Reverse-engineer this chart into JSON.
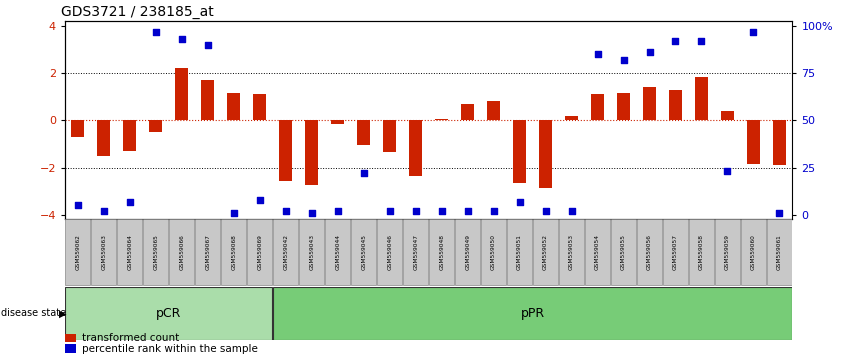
{
  "title": "GDS3721 / 238185_at",
  "samples": [
    "GSM559062",
    "GSM559063",
    "GSM559064",
    "GSM559065",
    "GSM559066",
    "GSM559067",
    "GSM559068",
    "GSM559069",
    "GSM559042",
    "GSM559043",
    "GSM559044",
    "GSM559045",
    "GSM559046",
    "GSM559047",
    "GSM559048",
    "GSM559049",
    "GSM559050",
    "GSM559051",
    "GSM559052",
    "GSM559053",
    "GSM559054",
    "GSM559055",
    "GSM559056",
    "GSM559057",
    "GSM559058",
    "GSM559059",
    "GSM559060",
    "GSM559061"
  ],
  "bar_values": [
    -0.7,
    -1.5,
    -1.3,
    -0.5,
    2.2,
    1.7,
    1.15,
    1.1,
    -2.55,
    -2.75,
    -0.15,
    -1.05,
    -1.35,
    -2.35,
    0.05,
    0.7,
    0.8,
    -2.65,
    -2.85,
    0.2,
    1.1,
    1.15,
    1.4,
    1.3,
    1.85,
    0.4,
    -1.85,
    -1.9
  ],
  "dot_values_pct": [
    5,
    2,
    7,
    97,
    93,
    90,
    1,
    8,
    2,
    1,
    2,
    22,
    2,
    2,
    2,
    2,
    2,
    7,
    2,
    2,
    85,
    82,
    86,
    92,
    92,
    23,
    97,
    1
  ],
  "group_labels": [
    "pCR",
    "pPR"
  ],
  "group_boundaries": [
    0,
    8,
    28
  ],
  "bar_color": "#CC2200",
  "dot_color": "#0000CC",
  "ylim": [
    -4.2,
    4.2
  ],
  "yticks_left": [
    -4,
    -2,
    0,
    2,
    4
  ],
  "yticks_right": [
    0,
    25,
    50,
    75,
    100
  ],
  "legend_items": [
    "transformed count",
    "percentile rank within the sample"
  ],
  "legend_colors": [
    "#CC2200",
    "#0000CC"
  ],
  "pCR_color": "#AADDAA",
  "pPR_color": "#77CC77",
  "label_bg": "#C8C8C8"
}
